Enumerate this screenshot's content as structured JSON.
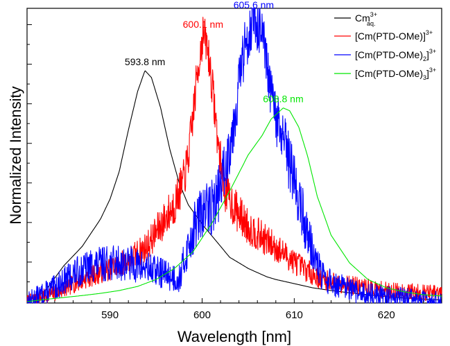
{
  "chart_data": {
    "type": "line",
    "xlabel": "Wavelength [nm]",
    "ylabel": "Normalized Intensity",
    "xlim": [
      581,
      626
    ],
    "ylim": [
      -0.005,
      1.06
    ],
    "x_ticks": [
      590,
      600,
      610,
      620
    ],
    "x_minor_step": 2,
    "y_ticks_labeled": false,
    "y_minor_step": 0.0715,
    "grid": false,
    "legend_position": "top-right",
    "series": [
      {
        "key": "aq",
        "legend_main": "Cm",
        "legend_sup": "3+",
        "legend_sub": "aq.",
        "color": "#000000",
        "noise": 0,
        "peak_label": "593.8 nm",
        "peak": {
          "x": 593.8,
          "y": 0.835
        },
        "points": [
          [
            581,
            0.0
          ],
          [
            583,
            0.04
          ],
          [
            585,
            0.13
          ],
          [
            587,
            0.2
          ],
          [
            589,
            0.3
          ],
          [
            590,
            0.37
          ],
          [
            591,
            0.47
          ],
          [
            592,
            0.62
          ],
          [
            593,
            0.76
          ],
          [
            593.8,
            0.835
          ],
          [
            594.5,
            0.81
          ],
          [
            595.5,
            0.7
          ],
          [
            596.5,
            0.55
          ],
          [
            597.5,
            0.43
          ],
          [
            598.5,
            0.35
          ],
          [
            600,
            0.28
          ],
          [
            601,
            0.24
          ],
          [
            602,
            0.2
          ],
          [
            603,
            0.16
          ],
          [
            604,
            0.14
          ],
          [
            605,
            0.12
          ],
          [
            606,
            0.105
          ],
          [
            607,
            0.09
          ],
          [
            608,
            0.08
          ],
          [
            610,
            0.065
          ],
          [
            612,
            0.05
          ],
          [
            614,
            0.04
          ],
          [
            616,
            0.032
          ],
          [
            618,
            0.025
          ],
          [
            620,
            0.018
          ],
          [
            622,
            0.013
          ],
          [
            624,
            0.009
          ],
          [
            626,
            0.006
          ]
        ]
      },
      {
        "key": "l1",
        "legend_main": "[Cm(PTD-OMe)]",
        "legend_sup": "3+",
        "legend_sub": "",
        "color": "#ff0000",
        "noise": 0.05,
        "seed": 7,
        "peak_label": "600.1 nm",
        "peak": {
          "x": 600.1,
          "y": 0.97
        },
        "points": [
          [
            581,
            0.0
          ],
          [
            584,
            0.03
          ],
          [
            587,
            0.08
          ],
          [
            590,
            0.12
          ],
          [
            592,
            0.15
          ],
          [
            594,
            0.2
          ],
          [
            595,
            0.25
          ],
          [
            596,
            0.3
          ],
          [
            597,
            0.35
          ],
          [
            598,
            0.44
          ],
          [
            598.5,
            0.52
          ],
          [
            599,
            0.67
          ],
          [
            599.5,
            0.83
          ],
          [
            600.1,
            0.97
          ],
          [
            600.6,
            0.92
          ],
          [
            601.2,
            0.75
          ],
          [
            601.8,
            0.55
          ],
          [
            602.5,
            0.4
          ],
          [
            603.5,
            0.34
          ],
          [
            605,
            0.27
          ],
          [
            607,
            0.22
          ],
          [
            609,
            0.17
          ],
          [
            611,
            0.12
          ],
          [
            613,
            0.08
          ],
          [
            616,
            0.06
          ],
          [
            620,
            0.04
          ],
          [
            623,
            0.035
          ],
          [
            626,
            0.03
          ]
        ]
      },
      {
        "key": "l2",
        "legend_main": "[Cm(PTD-OMe)",
        "legend_sup": "3+",
        "legend_sub": "2",
        "color": "#0000ff",
        "noise": 0.07,
        "seed": 13,
        "peak_label": "605.6 nm",
        "peak": {
          "x": 605.6,
          "y": 1.04
        },
        "points": [
          [
            581,
            0.0
          ],
          [
            584,
            0.05
          ],
          [
            586,
            0.1
          ],
          [
            588,
            0.13
          ],
          [
            590,
            0.14
          ],
          [
            592,
            0.14
          ],
          [
            594,
            0.12
          ],
          [
            596,
            0.1
          ],
          [
            597.5,
            0.08
          ],
          [
            598.5,
            0.2
          ],
          [
            599.5,
            0.3
          ],
          [
            600.5,
            0.33
          ],
          [
            601.5,
            0.36
          ],
          [
            602.5,
            0.48
          ],
          [
            603.5,
            0.66
          ],
          [
            604.2,
            0.84
          ],
          [
            605,
            0.97
          ],
          [
            605.6,
            1.04
          ],
          [
            606.2,
            0.99
          ],
          [
            606.8,
            0.9
          ],
          [
            607.5,
            0.74
          ],
          [
            608.2,
            0.64
          ],
          [
            609,
            0.56
          ],
          [
            610,
            0.44
          ],
          [
            611,
            0.3
          ],
          [
            612,
            0.18
          ],
          [
            613,
            0.09
          ],
          [
            614.5,
            0.06
          ],
          [
            617,
            0.03
          ],
          [
            620,
            0.02
          ],
          [
            623,
            0.01
          ],
          [
            626,
            0.0
          ]
        ]
      },
      {
        "key": "l3",
        "legend_main": "[Cm(PTD-OMe)",
        "legend_sup": "3+",
        "legend_sub": "3",
        "color": "#00e600",
        "noise": 0,
        "peak_label": "608.8 nm",
        "peak": {
          "x": 608.8,
          "y": 0.7
        },
        "points": [
          [
            581,
            0.0
          ],
          [
            583,
            0.008
          ],
          [
            585,
            0.015
          ],
          [
            587,
            0.022
          ],
          [
            589,
            0.03
          ],
          [
            591,
            0.04
          ],
          [
            593,
            0.055
          ],
          [
            595,
            0.08
          ],
          [
            597,
            0.12
          ],
          [
            599,
            0.18
          ],
          [
            601,
            0.28
          ],
          [
            603,
            0.4
          ],
          [
            605,
            0.53
          ],
          [
            606.5,
            0.6
          ],
          [
            607.5,
            0.66
          ],
          [
            608.8,
            0.7
          ],
          [
            609.5,
            0.69
          ],
          [
            610.5,
            0.63
          ],
          [
            611.5,
            0.52
          ],
          [
            612.5,
            0.38
          ],
          [
            614,
            0.24
          ],
          [
            616,
            0.14
          ],
          [
            618,
            0.08
          ],
          [
            620,
            0.05
          ],
          [
            622,
            0.035
          ],
          [
            624,
            0.025
          ],
          [
            626,
            0.02
          ]
        ]
      }
    ]
  }
}
